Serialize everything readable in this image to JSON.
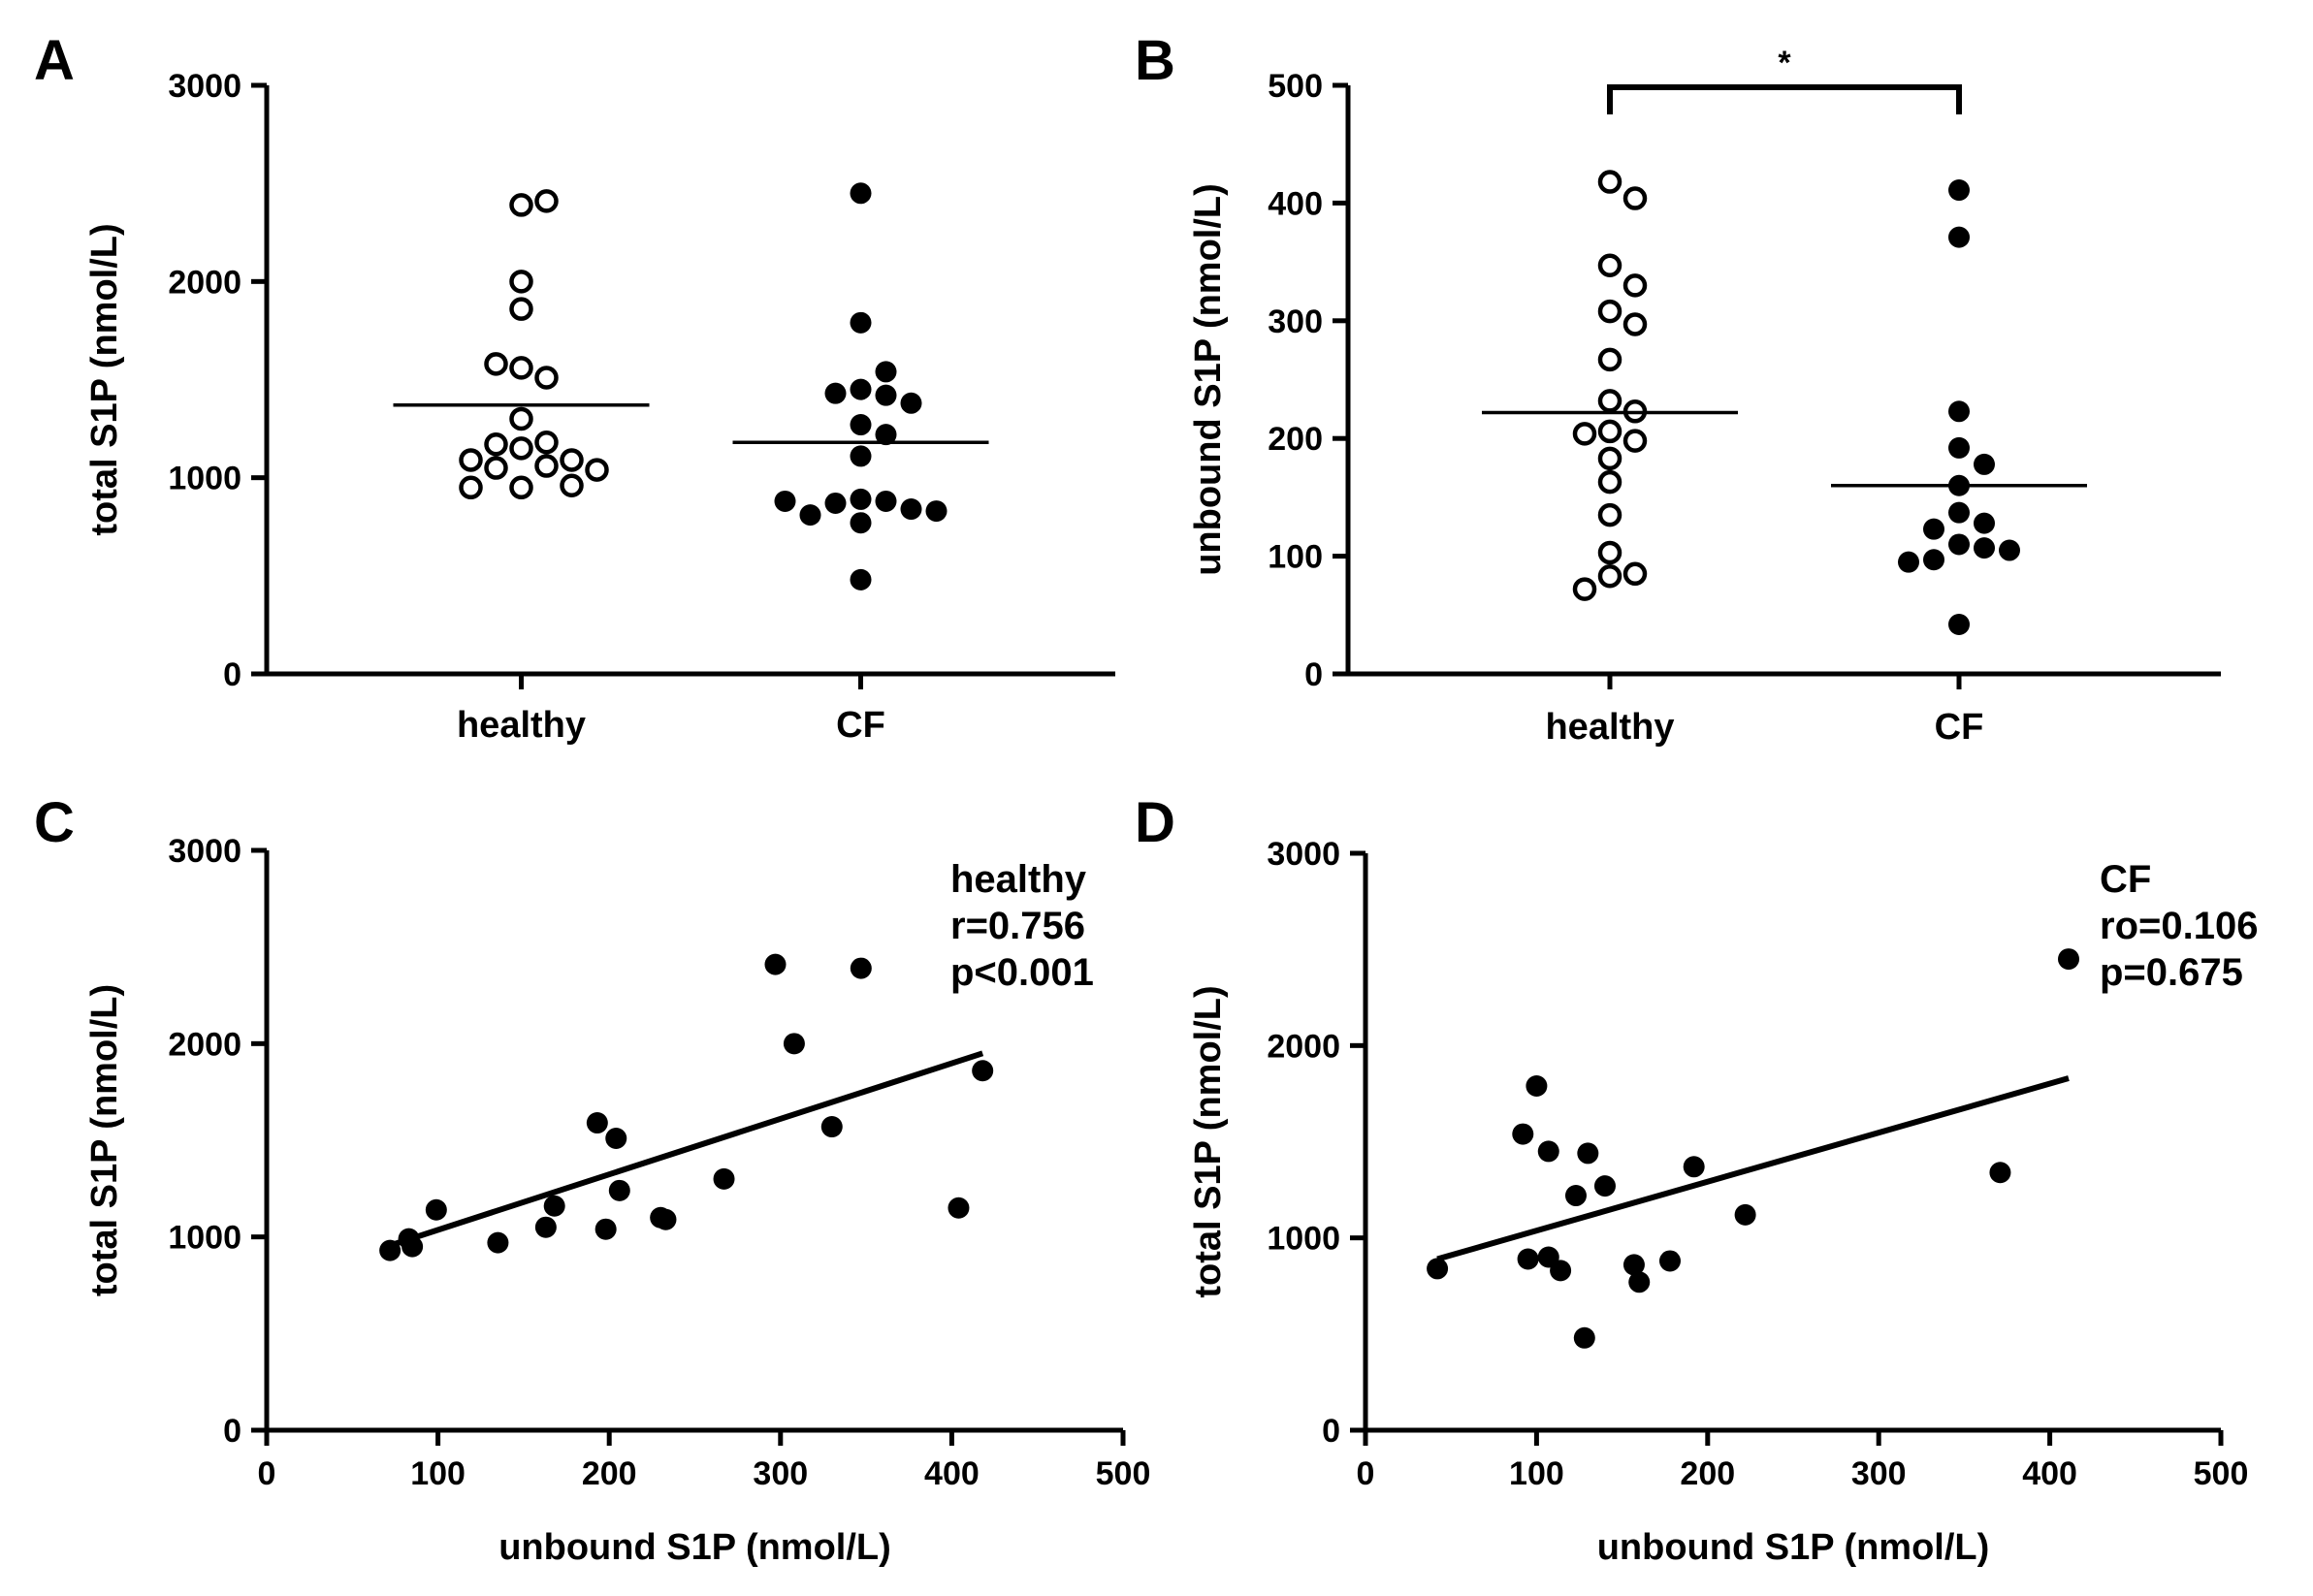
{
  "chart_data": [
    {
      "panel": "A",
      "type": "scatter",
      "title": "",
      "xlabel": "",
      "ylabel": "total S1P (nmol/L)",
      "ylim": [
        0,
        3000
      ],
      "yticks": [
        0,
        1000,
        2000,
        3000
      ],
      "categories": [
        "healthy",
        "CF"
      ],
      "series": [
        {
          "name": "healthy",
          "category": "healthy",
          "marker": "open",
          "mean": 1370,
          "values": [
            2390,
            2410,
            2000,
            1860,
            1560,
            1510,
            1580,
            1300,
            1150,
            1180,
            1170,
            1060,
            1090,
            1090,
            1050,
            1040,
            950,
            960,
            950
          ]
        },
        {
          "name": "CF",
          "category": "CF",
          "marker": "filled",
          "mean": 1180,
          "values": [
            2450,
            1790,
            1450,
            1420,
            1430,
            1540,
            1380,
            1270,
            1220,
            1110,
            890,
            880,
            870,
            840,
            810,
            770,
            830,
            880,
            480
          ]
        }
      ]
    },
    {
      "panel": "B",
      "type": "scatter",
      "title": "",
      "xlabel": "",
      "ylabel": "unbound S1P (nmol/L)",
      "ylim": [
        0,
        500
      ],
      "yticks": [
        0,
        100,
        200,
        300,
        400,
        500
      ],
      "categories": [
        "healthy",
        "CF"
      ],
      "significance": {
        "from": "healthy",
        "to": "CF",
        "label": "*",
        "level": 500
      },
      "series": [
        {
          "name": "healthy",
          "category": "healthy",
          "marker": "open",
          "mean": 222,
          "values": [
            418,
            404,
            347,
            330,
            308,
            297,
            267,
            232,
            223,
            206,
            204,
            198,
            183,
            163,
            135,
            103,
            83,
            85,
            72
          ]
        },
        {
          "name": "CF",
          "category": "CF",
          "marker": "filled",
          "mean": 160,
          "values": [
            411,
            371,
            223,
            192,
            178,
            160,
            137,
            128,
            123,
            110,
            107,
            105,
            97,
            95,
            42
          ]
        }
      ]
    },
    {
      "panel": "C",
      "type": "scatter",
      "title": "",
      "xlabel": "unbound S1P (nmol/L)",
      "ylabel": "total S1P (nmol/L)",
      "xlim": [
        0,
        500
      ],
      "ylim": [
        0,
        3000
      ],
      "xticks": [
        0,
        100,
        200,
        300,
        400,
        500
      ],
      "yticks": [
        0,
        1000,
        2000,
        3000
      ],
      "annotation": [
        "healthy",
        "r=0.756",
        "p<0.001"
      ],
      "series": [
        {
          "name": "healthy",
          "x": [
            72,
            83,
            85,
            99,
            135,
            163,
            168,
            193,
            198,
            204,
            206,
            230,
            233,
            267,
            297,
            308,
            330,
            347,
            404,
            418
          ],
          "y": [
            930,
            990,
            950,
            1140,
            970,
            1050,
            1160,
            1590,
            1040,
            1510,
            1240,
            1100,
            1090,
            1300,
            2410,
            2000,
            1570,
            2390,
            1150,
            1860
          ]
        }
      ],
      "fit": {
        "x1": 70,
        "y1": 950,
        "x2": 418,
        "y2": 1950
      }
    },
    {
      "panel": "D",
      "type": "scatter",
      "title": "",
      "xlabel": "unbound S1P (nmol/L)",
      "ylabel": "total S1P (nmol/L)",
      "xlim": [
        0,
        500
      ],
      "ylim": [
        0,
        3000
      ],
      "xticks": [
        0,
        100,
        200,
        300,
        400,
        500
      ],
      "yticks": [
        0,
        1000,
        2000,
        3000
      ],
      "annotation": [
        "CF",
        "ro=0.106",
        "p=0.675"
      ],
      "series": [
        {
          "name": "CF",
          "x": [
            42,
            92,
            95,
            100,
            107,
            107,
            114,
            123,
            128,
            130,
            140,
            157,
            160,
            178,
            192,
            222,
            371,
            411
          ],
          "y": [
            840,
            1540,
            890,
            1790,
            900,
            1450,
            830,
            1220,
            480,
            1440,
            1270,
            860,
            770,
            880,
            1370,
            1120,
            1340,
            2450
          ]
        }
      ],
      "fit": {
        "x1": 42,
        "y1": 890,
        "x2": 411,
        "y2": 1830
      }
    }
  ]
}
